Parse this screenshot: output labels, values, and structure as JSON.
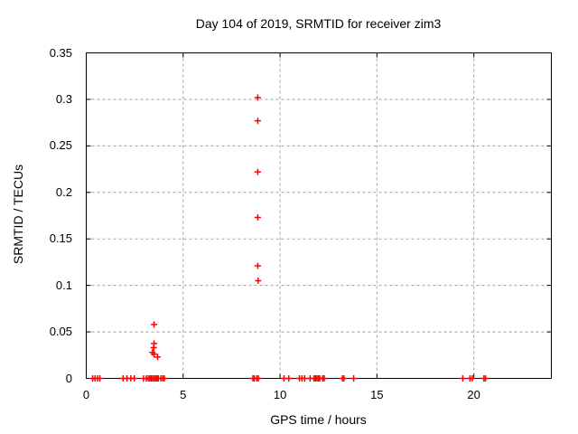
{
  "window": {
    "background": "#ffffff"
  },
  "chart_data": {
    "type": "scatter",
    "title": "Day 104 of 2019, SRMTID for receiver zim3",
    "xlabel": "GPS time / hours",
    "ylabel": "SRMTID / TECUs",
    "xlim": [
      0,
      24
    ],
    "ylim": [
      0,
      0.35
    ],
    "xticks": [
      0,
      5,
      10,
      15,
      20
    ],
    "xtick_labels": [
      "0",
      "5",
      "10",
      "15",
      "20"
    ],
    "yticks": [
      0,
      0.05,
      0.1,
      0.15,
      0.2,
      0.25,
      0.3,
      0.35
    ],
    "ytick_labels": [
      "0",
      "0.05",
      "0.1",
      "0.15",
      "0.2",
      "0.25",
      "0.3",
      "0.35"
    ],
    "grid": true,
    "legend_position": "none",
    "marker": "plus",
    "colors": {
      "marker": "#ff0000",
      "grid": "#a0a0a0",
      "axis": "#000000",
      "text": "#000000",
      "background": "#ffffff"
    },
    "series": [
      {
        "name": "SRMTID",
        "points": [
          [
            0.33,
            0
          ],
          [
            0.45,
            0
          ],
          [
            0.58,
            0
          ],
          [
            0.7,
            0
          ],
          [
            1.9,
            0
          ],
          [
            2.1,
            0
          ],
          [
            2.3,
            0
          ],
          [
            2.48,
            0
          ],
          [
            2.95,
            0
          ],
          [
            3.1,
            0
          ],
          [
            3.2,
            0
          ],
          [
            3.28,
            0
          ],
          [
            3.35,
            0
          ],
          [
            3.42,
            0
          ],
          [
            3.5,
            0
          ],
          [
            3.58,
            0
          ],
          [
            3.65,
            0
          ],
          [
            3.72,
            0
          ],
          [
            3.85,
            0
          ],
          [
            3.95,
            0
          ],
          [
            4.03,
            0
          ],
          [
            8.6,
            0
          ],
          [
            8.67,
            0
          ],
          [
            8.8,
            0
          ],
          [
            8.88,
            0
          ],
          [
            10.2,
            0
          ],
          [
            10.45,
            0
          ],
          [
            11.0,
            0
          ],
          [
            11.13,
            0
          ],
          [
            11.27,
            0
          ],
          [
            11.55,
            0
          ],
          [
            11.75,
            0
          ],
          [
            11.83,
            0
          ],
          [
            11.9,
            0
          ],
          [
            11.98,
            0
          ],
          [
            12.05,
            0
          ],
          [
            12.2,
            0
          ],
          [
            12.28,
            0
          ],
          [
            13.22,
            0
          ],
          [
            13.3,
            0
          ],
          [
            13.8,
            0
          ],
          [
            19.43,
            0
          ],
          [
            19.8,
            0
          ],
          [
            19.92,
            0
          ],
          [
            20.52,
            0
          ],
          [
            20.6,
            0
          ],
          [
            3.42,
            0.028
          ],
          [
            3.48,
            0.033
          ],
          [
            3.5,
            0.026
          ],
          [
            3.5,
            0.0375
          ],
          [
            3.5,
            0.058
          ],
          [
            3.68,
            0.023
          ],
          [
            8.85,
            0.121
          ],
          [
            8.85,
            0.173
          ],
          [
            8.85,
            0.222
          ],
          [
            8.85,
            0.277
          ],
          [
            8.85,
            0.302
          ],
          [
            8.87,
            0.105
          ]
        ]
      }
    ]
  }
}
